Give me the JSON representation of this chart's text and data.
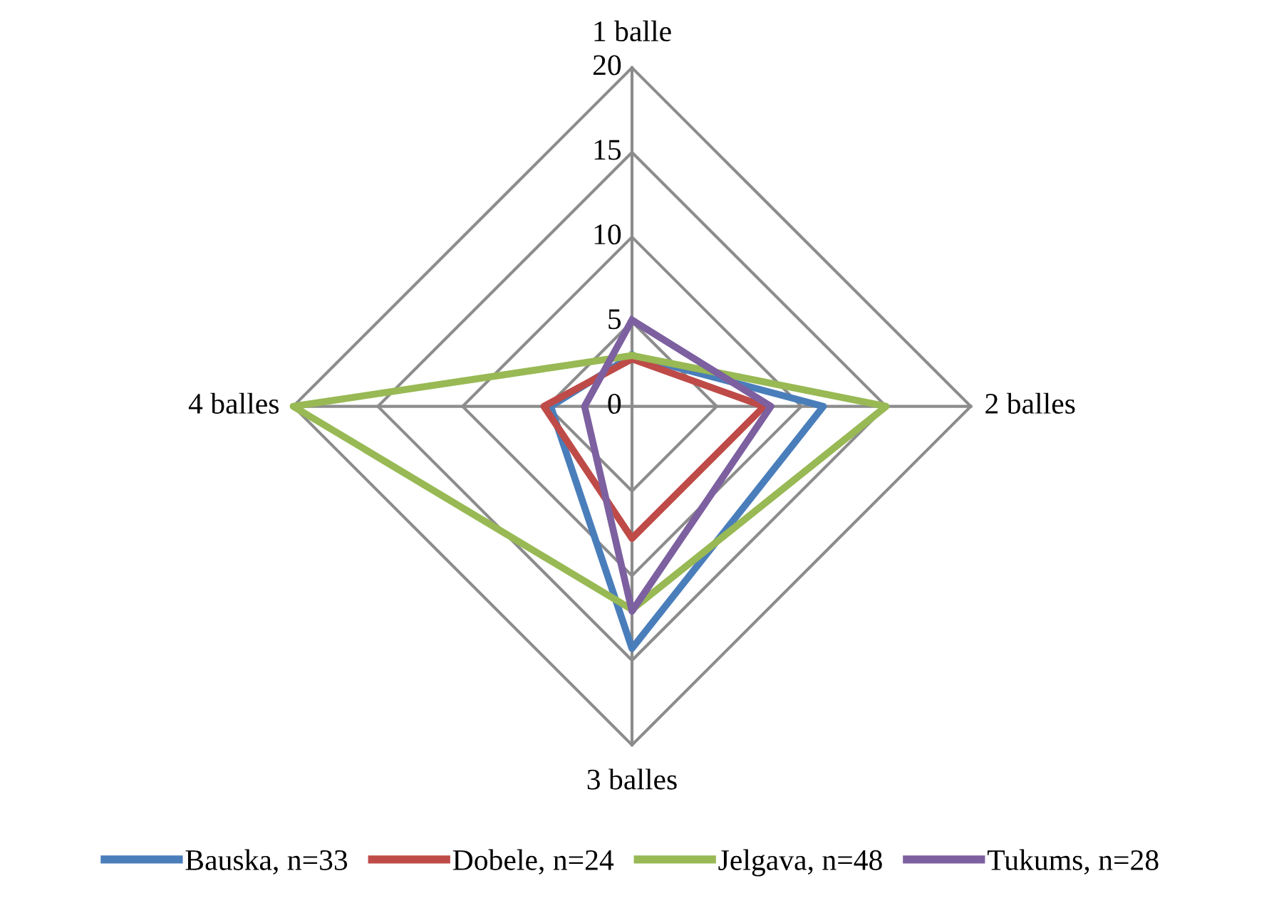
{
  "chart_data": {
    "type": "radar",
    "categories": [
      "1 balle",
      "2 balles",
      "3 balles",
      "4 balles"
    ],
    "ylim": [
      0,
      20
    ],
    "yticks": [
      0,
      5,
      10,
      15,
      20
    ],
    "legend": "bottom",
    "grid": true,
    "series": [
      {
        "name": "Bauska, n=33",
        "color": "#4a7ebb",
        "values": [
          3,
          11.3,
          14.3,
          4.8
        ]
      },
      {
        "name": "Dobele, n=24",
        "color": "#be4b48",
        "values": [
          2.8,
          7.8,
          7.8,
          5.2
        ]
      },
      {
        "name": "Jelgava, n=48",
        "color": "#98b954",
        "values": [
          3,
          15,
          12,
          20
        ]
      },
      {
        "name": "Tukums, n=28",
        "color": "#7d60a0",
        "values": [
          5.1,
          8.2,
          12.1,
          2.8
        ]
      }
    ]
  }
}
